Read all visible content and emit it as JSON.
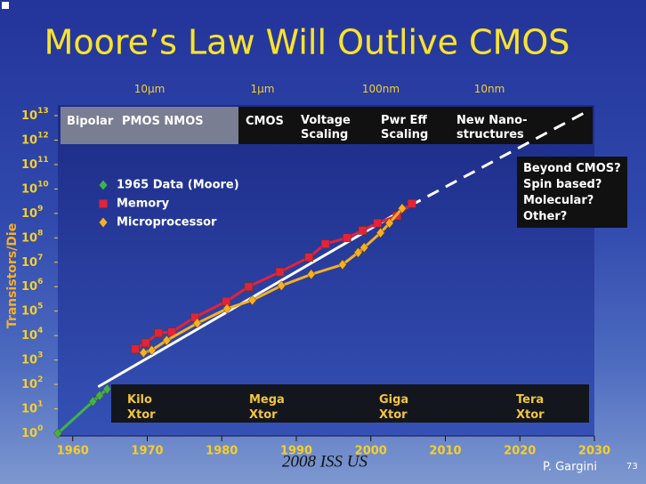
{
  "chart_data": {
    "type": "line",
    "title": "Moore’s Law Will Outlive CMOS",
    "y_label": "Transistors/Die",
    "y_scale": "log",
    "xlim": [
      1958,
      2030
    ],
    "xticks": [
      1960,
      1970,
      1980,
      1990,
      2000,
      2010,
      2020,
      2030
    ],
    "ylim": [
      1,
      10000000000000
    ],
    "yticks": [
      {
        "value": 1,
        "label": "10",
        "sup": "0"
      },
      {
        "value": 10,
        "label": "10",
        "sup": "1"
      },
      {
        "value": 100,
        "label": "10",
        "sup": "2"
      },
      {
        "value": 1000,
        "label": "10",
        "sup": "3"
      },
      {
        "value": 10000,
        "label": "10",
        "sup": "4"
      },
      {
        "value": 100000,
        "label": "10",
        "sup": "5"
      },
      {
        "value": 1000000,
        "label": "10",
        "sup": "6"
      },
      {
        "value": 10000000,
        "label": "10",
        "sup": "7"
      },
      {
        "value": 100000000,
        "label": "10",
        "sup": "8"
      },
      {
        "value": 1000000000,
        "label": "10",
        "sup": "9"
      },
      {
        "value": 10000000000,
        "label": "10",
        "sup": "10"
      },
      {
        "value": 100000000000,
        "label": "10",
        "sup": "11"
      },
      {
        "value": 1000000000000,
        "label": "10",
        "sup": "12"
      },
      {
        "value": 10000000000000,
        "label": "10",
        "sup": "13"
      }
    ],
    "series": [
      {
        "name": "1965 Data (Moore)",
        "color": "#3fb34a",
        "marker": "diamond",
        "x": [
          1958,
          1962.7,
          1963.6,
          1964.6
        ],
        "values": [
          1,
          20,
          35,
          64
        ]
      },
      {
        "name": "Memory",
        "color": "#e3223c",
        "marker": "square",
        "x": [
          1968.4,
          1969.8,
          1971.5,
          1973.3,
          1976.4,
          1980.6,
          1983.6,
          1987.8,
          1991.7,
          1993.9,
          1996.8,
          1998.9,
          2000.9,
          2003.5,
          2005.5
        ],
        "values": [
          2800,
          5000,
          12600,
          14000,
          56000,
          250000,
          1000000,
          4000000,
          16000000,
          56000000,
          100000000,
          200000000,
          400000000,
          800000000,
          2500000000
        ]
      },
      {
        "name": "Microprocessor",
        "color": "#f5b025",
        "marker": "diamond",
        "x": [
          1969.5,
          1970.6,
          1972.6,
          1976.7,
          1980.7,
          1984.1,
          1988,
          1992,
          1996.2,
          1998.3,
          1999.1,
          2001.3,
          2002.5,
          2004.2
        ],
        "values": [
          2000,
          2500,
          6300,
          32000,
          126000,
          280000,
          1100000,
          3200000,
          8000000,
          25000000,
          40000000,
          160000000,
          400000000,
          1600000000
        ]
      }
    ],
    "trend": {
      "color": "#ffffff",
      "x": [
        1963.4,
        2005.2,
        2029.2
      ],
      "values": [
        80,
        2000000000,
        16000000000000
      ]
    },
    "feature_sizes": [
      "10µm",
      "1µm",
      "100nm",
      "10nm"
    ],
    "eras": [
      [
        "Bipolar"
      ],
      [
        "PMOS NMOS"
      ],
      [
        "CMOS"
      ],
      [
        "Voltage",
        "Scaling"
      ],
      [
        "Pwr Eff",
        "Scaling"
      ],
      [
        "New Nano-",
        "structures"
      ]
    ],
    "scales": [
      [
        "Kilo",
        "Xtor"
      ],
      [
        "Mega",
        "Xtor"
      ],
      [
        "Giga",
        "Xtor"
      ],
      [
        "Tera",
        "Xtor"
      ]
    ],
    "beyond": [
      "Beyond CMOS?",
      "Spin based?",
      "Molecular?",
      "Other?"
    ]
  },
  "footer": {
    "source": "2008 ISS US",
    "author": "P. Gargini",
    "page": "73"
  }
}
